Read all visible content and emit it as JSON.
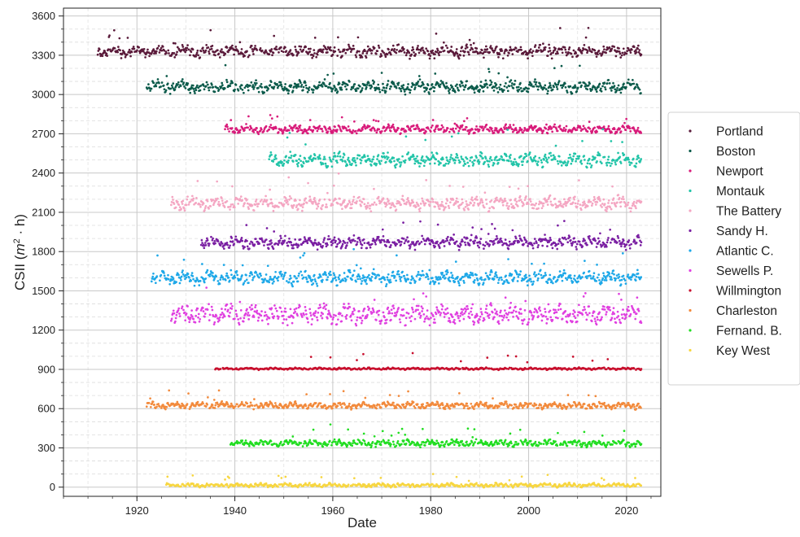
{
  "chart_data": {
    "type": "scatter",
    "title": "",
    "xlabel": "Date",
    "ylabel_main": "CSII (",
    "ylabel_math": "m",
    "ylabel_sup": "2",
    "ylabel_rest": " · h)",
    "xlim": [
      1905,
      2027
    ],
    "ylim": [
      -70,
      3660
    ],
    "xticks": [
      1920,
      1940,
      1960,
      1980,
      2000,
      2020
    ],
    "yticks": [
      0,
      300,
      600,
      900,
      1200,
      1500,
      1800,
      2100,
      2400,
      2700,
      3000,
      3300,
      3600
    ],
    "grid": true,
    "legend_position": "right",
    "series": [
      {
        "name": "Portland",
        "color": "#5a1a3a",
        "start": 1912,
        "end": 2023,
        "base": 3330,
        "amp": 45,
        "spike": 150
      },
      {
        "name": "Boston",
        "color": "#0b5a4a",
        "start": 1922,
        "end": 2023,
        "base": 3060,
        "amp": 45,
        "spike": 160
      },
      {
        "name": "Newport",
        "color": "#d81b7a",
        "start": 1938,
        "end": 2023,
        "base": 2735,
        "amp": 30,
        "spike": 100
      },
      {
        "name": "Montauk",
        "color": "#22c4a8",
        "start": 1947,
        "end": 2023,
        "base": 2500,
        "amp": 50,
        "spike": 220
      },
      {
        "name": "The Battery",
        "color": "#f4a6c2",
        "start": 1927,
        "end": 2023,
        "base": 2170,
        "amp": 50,
        "spike": 180
      },
      {
        "name": "Sandy H.",
        "color": "#7a1fa2",
        "start": 1933,
        "end": 2023,
        "base": 1870,
        "amp": 45,
        "spike": 160
      },
      {
        "name": "Atlantic C.",
        "color": "#1ea8e8",
        "start": 1923,
        "end": 2023,
        "base": 1600,
        "amp": 50,
        "spike": 200
      },
      {
        "name": "Sewells P.",
        "color": "#e040e0",
        "start": 1927,
        "end": 2023,
        "base": 1320,
        "amp": 70,
        "spike": 200
      },
      {
        "name": "Willmington",
        "color": "#c8102e",
        "start": 1936,
        "end": 2023,
        "base": 905,
        "amp": 8,
        "spike": 110
      },
      {
        "name": "Charleston",
        "color": "#f28a3c",
        "start": 1922,
        "end": 2023,
        "base": 625,
        "amp": 25,
        "spike": 110
      },
      {
        "name": "Fernand. B.",
        "color": "#22dd22",
        "start": 1939,
        "end": 2023,
        "base": 335,
        "amp": 25,
        "spike": 130
      },
      {
        "name": "Key West",
        "color": "#f7d640",
        "start": 1926,
        "end": 2023,
        "base": 15,
        "amp": 15,
        "spike": 90
      }
    ]
  }
}
